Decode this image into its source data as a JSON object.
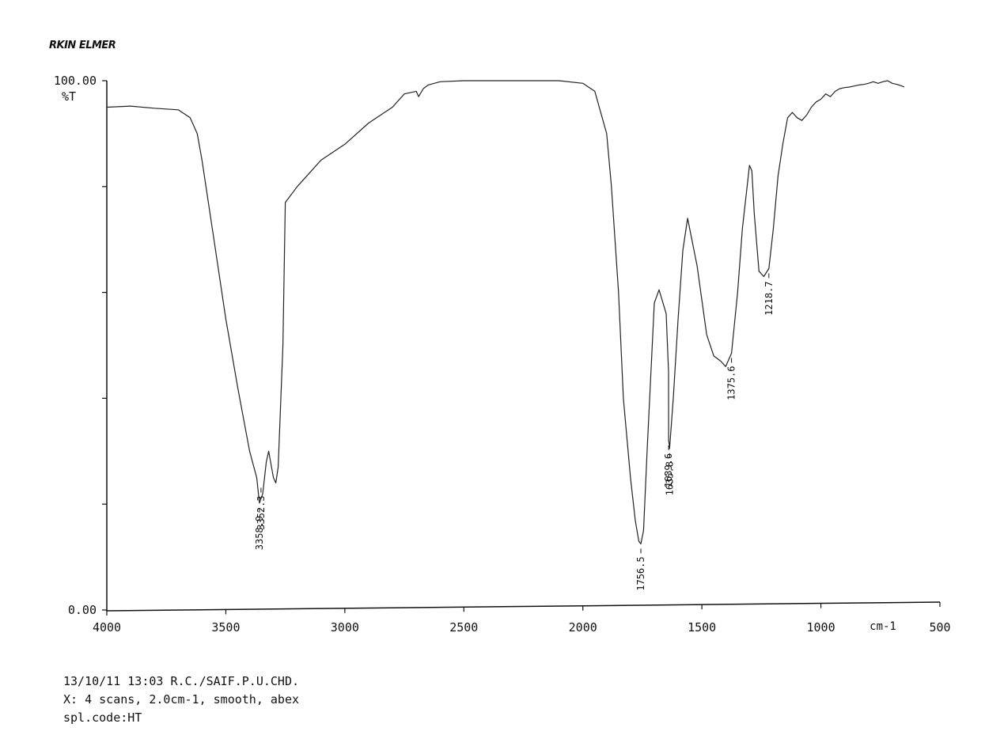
{
  "brand": "RKIN ELMER",
  "footer": {
    "line1": "13/10/11 13:03 R.C./SAIF.P.U.CHD.",
    "line2": "X: 4 scans, 2.0cm-1, smooth, abex",
    "line3": "spl.code:HT"
  },
  "chart_data": {
    "type": "line",
    "title": "",
    "xlabel": "cm-1",
    "ylabel": "%T",
    "xlim": [
      4000,
      500
    ],
    "ylim": [
      0,
      100
    ],
    "x_ticks": [
      4000,
      3500,
      3000,
      2500,
      2000,
      1500,
      1000,
      500
    ],
    "y_tick_labels": [
      "100.00",
      "0.00"
    ],
    "y_tick_values": [
      0,
      20,
      40,
      60,
      80,
      100
    ],
    "grid": false,
    "colors": {
      "line": "#222222",
      "axis": "#111111"
    },
    "series": [
      {
        "x": [
          4000,
          3900,
          3800,
          3700,
          3650,
          3620,
          3600,
          3550,
          3500,
          3450,
          3400,
          3370,
          3358.9,
          3345,
          3330,
          3320,
          3300,
          3290,
          3280,
          3260,
          3250,
          3200,
          3100,
          3000,
          2900,
          2800,
          2750,
          2700,
          2690,
          2670,
          2650,
          2600,
          2500,
          2400,
          2300,
          2200,
          2100,
          2000,
          1950,
          1900,
          1880,
          1850,
          1830,
          1800,
          1780,
          1765,
          1756.5,
          1745,
          1730,
          1700,
          1680,
          1670,
          1650,
          1640,
          1639.6,
          1636,
          1635.8,
          1620,
          1600,
          1580,
          1560,
          1520,
          1480,
          1450,
          1420,
          1400,
          1375.6,
          1350,
          1330,
          1310,
          1300,
          1290,
          1280,
          1260,
          1240,
          1218.7,
          1200,
          1180,
          1160,
          1140,
          1120,
          1100,
          1080,
          1060,
          1040,
          1020,
          1000,
          980,
          960,
          940,
          920,
          900,
          880,
          860,
          840,
          820,
          800,
          780,
          760,
          740,
          720,
          700,
          680,
          660,
          650
        ],
        "y": [
          95.0,
          95.2,
          94.8,
          94.5,
          93.0,
          90.0,
          85.0,
          70.0,
          55.0,
          42.0,
          30.0,
          25.0,
          20.2,
          22.0,
          28.0,
          30.0,
          25.0,
          24.0,
          27.0,
          50.0,
          77.0,
          80.0,
          85.0,
          88.0,
          92.0,
          95.0,
          97.5,
          98.0,
          97.0,
          98.5,
          99.2,
          99.8,
          100.0,
          100.0,
          100.0,
          100.0,
          100.0,
          99.5,
          98.0,
          90.0,
          80.0,
          60.0,
          40.0,
          25.0,
          17.0,
          13.0,
          12.5,
          15.0,
          30.0,
          58.0,
          60.5,
          59.0,
          56.0,
          45.0,
          32.0,
          31.0,
          30.5,
          40.0,
          55.0,
          68.0,
          74.0,
          65.0,
          52.0,
          48.0,
          47.0,
          46.0,
          48.5,
          60.0,
          72.0,
          80.0,
          84.0,
          83.0,
          75.0,
          64.0,
          63.0,
          64.5,
          72.0,
          82.0,
          88.0,
          93.0,
          94.0,
          93.0,
          92.5,
          93.5,
          95.0,
          96.0,
          96.5,
          97.5,
          97.0,
          98.0,
          98.5,
          98.7,
          98.8,
          99.0,
          99.2,
          99.3,
          99.5,
          99.8,
          99.5,
          99.8,
          100.0,
          99.5,
          99.3,
          99.0,
          98.8
        ]
      }
    ],
    "peak_labels": [
      {
        "x": 3358.9,
        "y": 20.2,
        "label": "3358.9"
      },
      {
        "x": 3352.3,
        "y": 24.0,
        "label": "3352.3"
      },
      {
        "x": 1756.5,
        "y": 12.5,
        "label": "1756.5"
      },
      {
        "x": 1639.6,
        "y": 32.0,
        "label": "1639.6"
      },
      {
        "x": 1635.8,
        "y": 30.5,
        "label": "1635.8"
      },
      {
        "x": 1375.6,
        "y": 48.5,
        "label": "1375.6"
      },
      {
        "x": 1218.7,
        "y": 64.5,
        "label": "1218.7"
      }
    ]
  }
}
